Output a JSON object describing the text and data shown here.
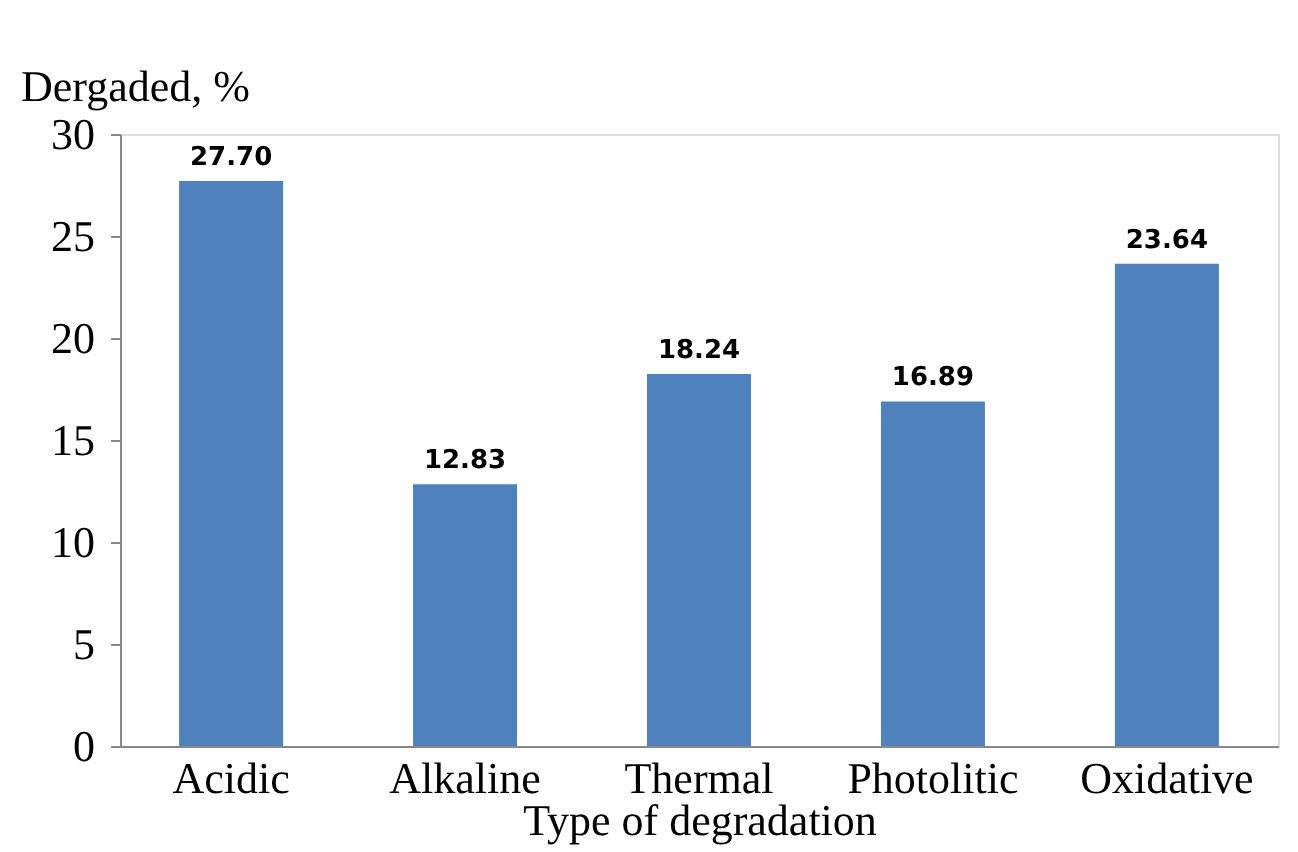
{
  "chart_data": {
    "type": "bar",
    "xlabel": "Type of degradation",
    "ylabel": "Dergaded, %",
    "categories": [
      "Acidic",
      "Alkaline",
      "Thermal",
      "Photolitic",
      "Oxidative"
    ],
    "values": [
      27.7,
      12.83,
      18.24,
      16.89,
      23.64
    ],
    "value_labels": [
      "27.70",
      "12.83",
      "18.24",
      "16.89",
      "23.64"
    ],
    "color": "#4f81bd",
    "ylim": [
      0,
      30
    ],
    "yticks": [
      0,
      5,
      10,
      15,
      20,
      25,
      30
    ],
    "grid": false
  }
}
